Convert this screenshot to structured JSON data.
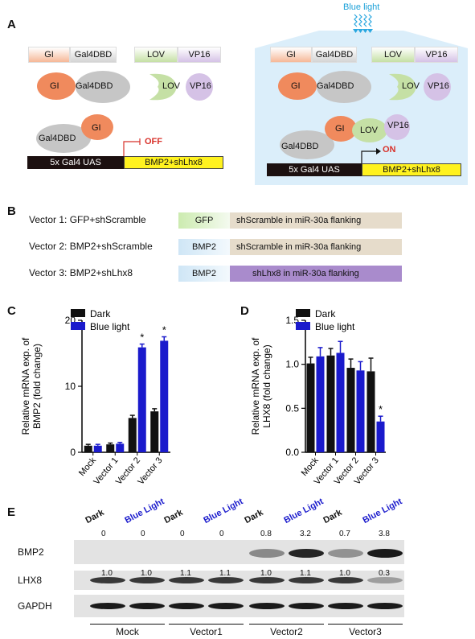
{
  "panel_letters": {
    "a": "A",
    "b": "B",
    "c": "C",
    "d": "D",
    "e": "E"
  },
  "colors": {
    "gi_orange": "#f08a5d",
    "gal4_gray": "#c8c8c8",
    "lov_green": "#c5e0a5",
    "vp16_purple": "#d5c2e6",
    "uas_black": "#1c1010",
    "target_yellow": "#fff21f",
    "blue_bg": "#dbeefa",
    "off_red": "#d8312a",
    "bar_dark": "#111111",
    "bar_blue": "#1a1acc"
  },
  "panel_a": {
    "blue_light_label": "Blue light",
    "left": {
      "gi": "GI",
      "gal4dbd": "Gal4DBD",
      "lov": "LOV",
      "vp16": "VP16",
      "uas": "5x Gal4 UAS",
      "target": "BMP2+shLhx8",
      "state": "OFF"
    },
    "right": {
      "gi": "GI",
      "gal4dbd": "Gal4DBD",
      "lov": "LOV",
      "vp16": "VP16",
      "uas": "5x Gal4 UAS",
      "target": "BMP2+shLhx8",
      "state": "ON"
    }
  },
  "panel_b": {
    "vectors": [
      {
        "name": "Vector 1: GFP+shScramble",
        "gene": "GFP",
        "insert": "shScramble in miR-30a flanking"
      },
      {
        "name": "Vector 2: BMP2+shScramble",
        "gene": "BMP2",
        "insert": "shScramble in miR-30a flanking"
      },
      {
        "name": "Vector 3: BMP2+shLhx8",
        "gene": "BMP2",
        "insert": "shLhx8 in miR-30a flanking"
      }
    ]
  },
  "chart_data": [
    {
      "type": "bar",
      "panel": "C",
      "ylabel": "Relative mRNA exp. of BMP2 (fold change)",
      "categories": [
        "Mock",
        "Vector 1",
        "Vector 2",
        "Vector 3"
      ],
      "ylim": [
        0,
        20
      ],
      "yticks": [
        "0",
        "10",
        "20"
      ],
      "legend": [
        "Dark",
        "Blue light"
      ],
      "series": [
        {
          "name": "Dark",
          "values": [
            1.0,
            1.2,
            5.2,
            6.2
          ],
          "errors": [
            0.2,
            0.2,
            0.4,
            0.4
          ]
        },
        {
          "name": "Blue light",
          "values": [
            1.0,
            1.3,
            15.9,
            16.9
          ],
          "errors": [
            0.2,
            0.2,
            0.5,
            0.6
          ]
        }
      ],
      "significance_marks": [
        "*",
        "*"
      ]
    },
    {
      "type": "bar",
      "panel": "D",
      "ylabel": "Relative mRNA exp. of LHX8 (fold change)",
      "categories": [
        "Mock",
        "Vector 1",
        "Vector 2",
        "Vector 3"
      ],
      "ylim": [
        0,
        1.5
      ],
      "yticks": [
        "0.0",
        "0.5",
        "1.0",
        "1.5"
      ],
      "legend": [
        "Dark",
        "Blue light"
      ],
      "series": [
        {
          "name": "Dark",
          "values": [
            1.01,
            1.1,
            0.96,
            0.92
          ],
          "errors": [
            0.07,
            0.08,
            0.1,
            0.15
          ]
        },
        {
          "name": "Blue light",
          "values": [
            1.09,
            1.13,
            0.93,
            0.35
          ],
          "errors": [
            0.1,
            0.13,
            0.1,
            0.06
          ]
        }
      ],
      "significance_marks": [
        "*"
      ]
    }
  ],
  "panel_e": {
    "conditions": [
      "Dark",
      "Blue Light",
      "Dark",
      "Blue Light",
      "Dark",
      "Blue Light",
      "Dark",
      "Blue Light"
    ],
    "rows": [
      {
        "label": "BMP2",
        "values": [
          "0",
          "0",
          "0",
          "0",
          "0.8",
          "3.2",
          "0.7",
          "3.8"
        ]
      },
      {
        "label": "LHX8",
        "values": [
          "1.0",
          "1.0",
          "1.1",
          "1.1",
          "1.0",
          "1.1",
          "1.0",
          "0.3"
        ]
      },
      {
        "label": "GAPDH",
        "values": []
      }
    ],
    "groups": [
      "Mock",
      "Vector1",
      "Vector2",
      "Vector3"
    ]
  }
}
